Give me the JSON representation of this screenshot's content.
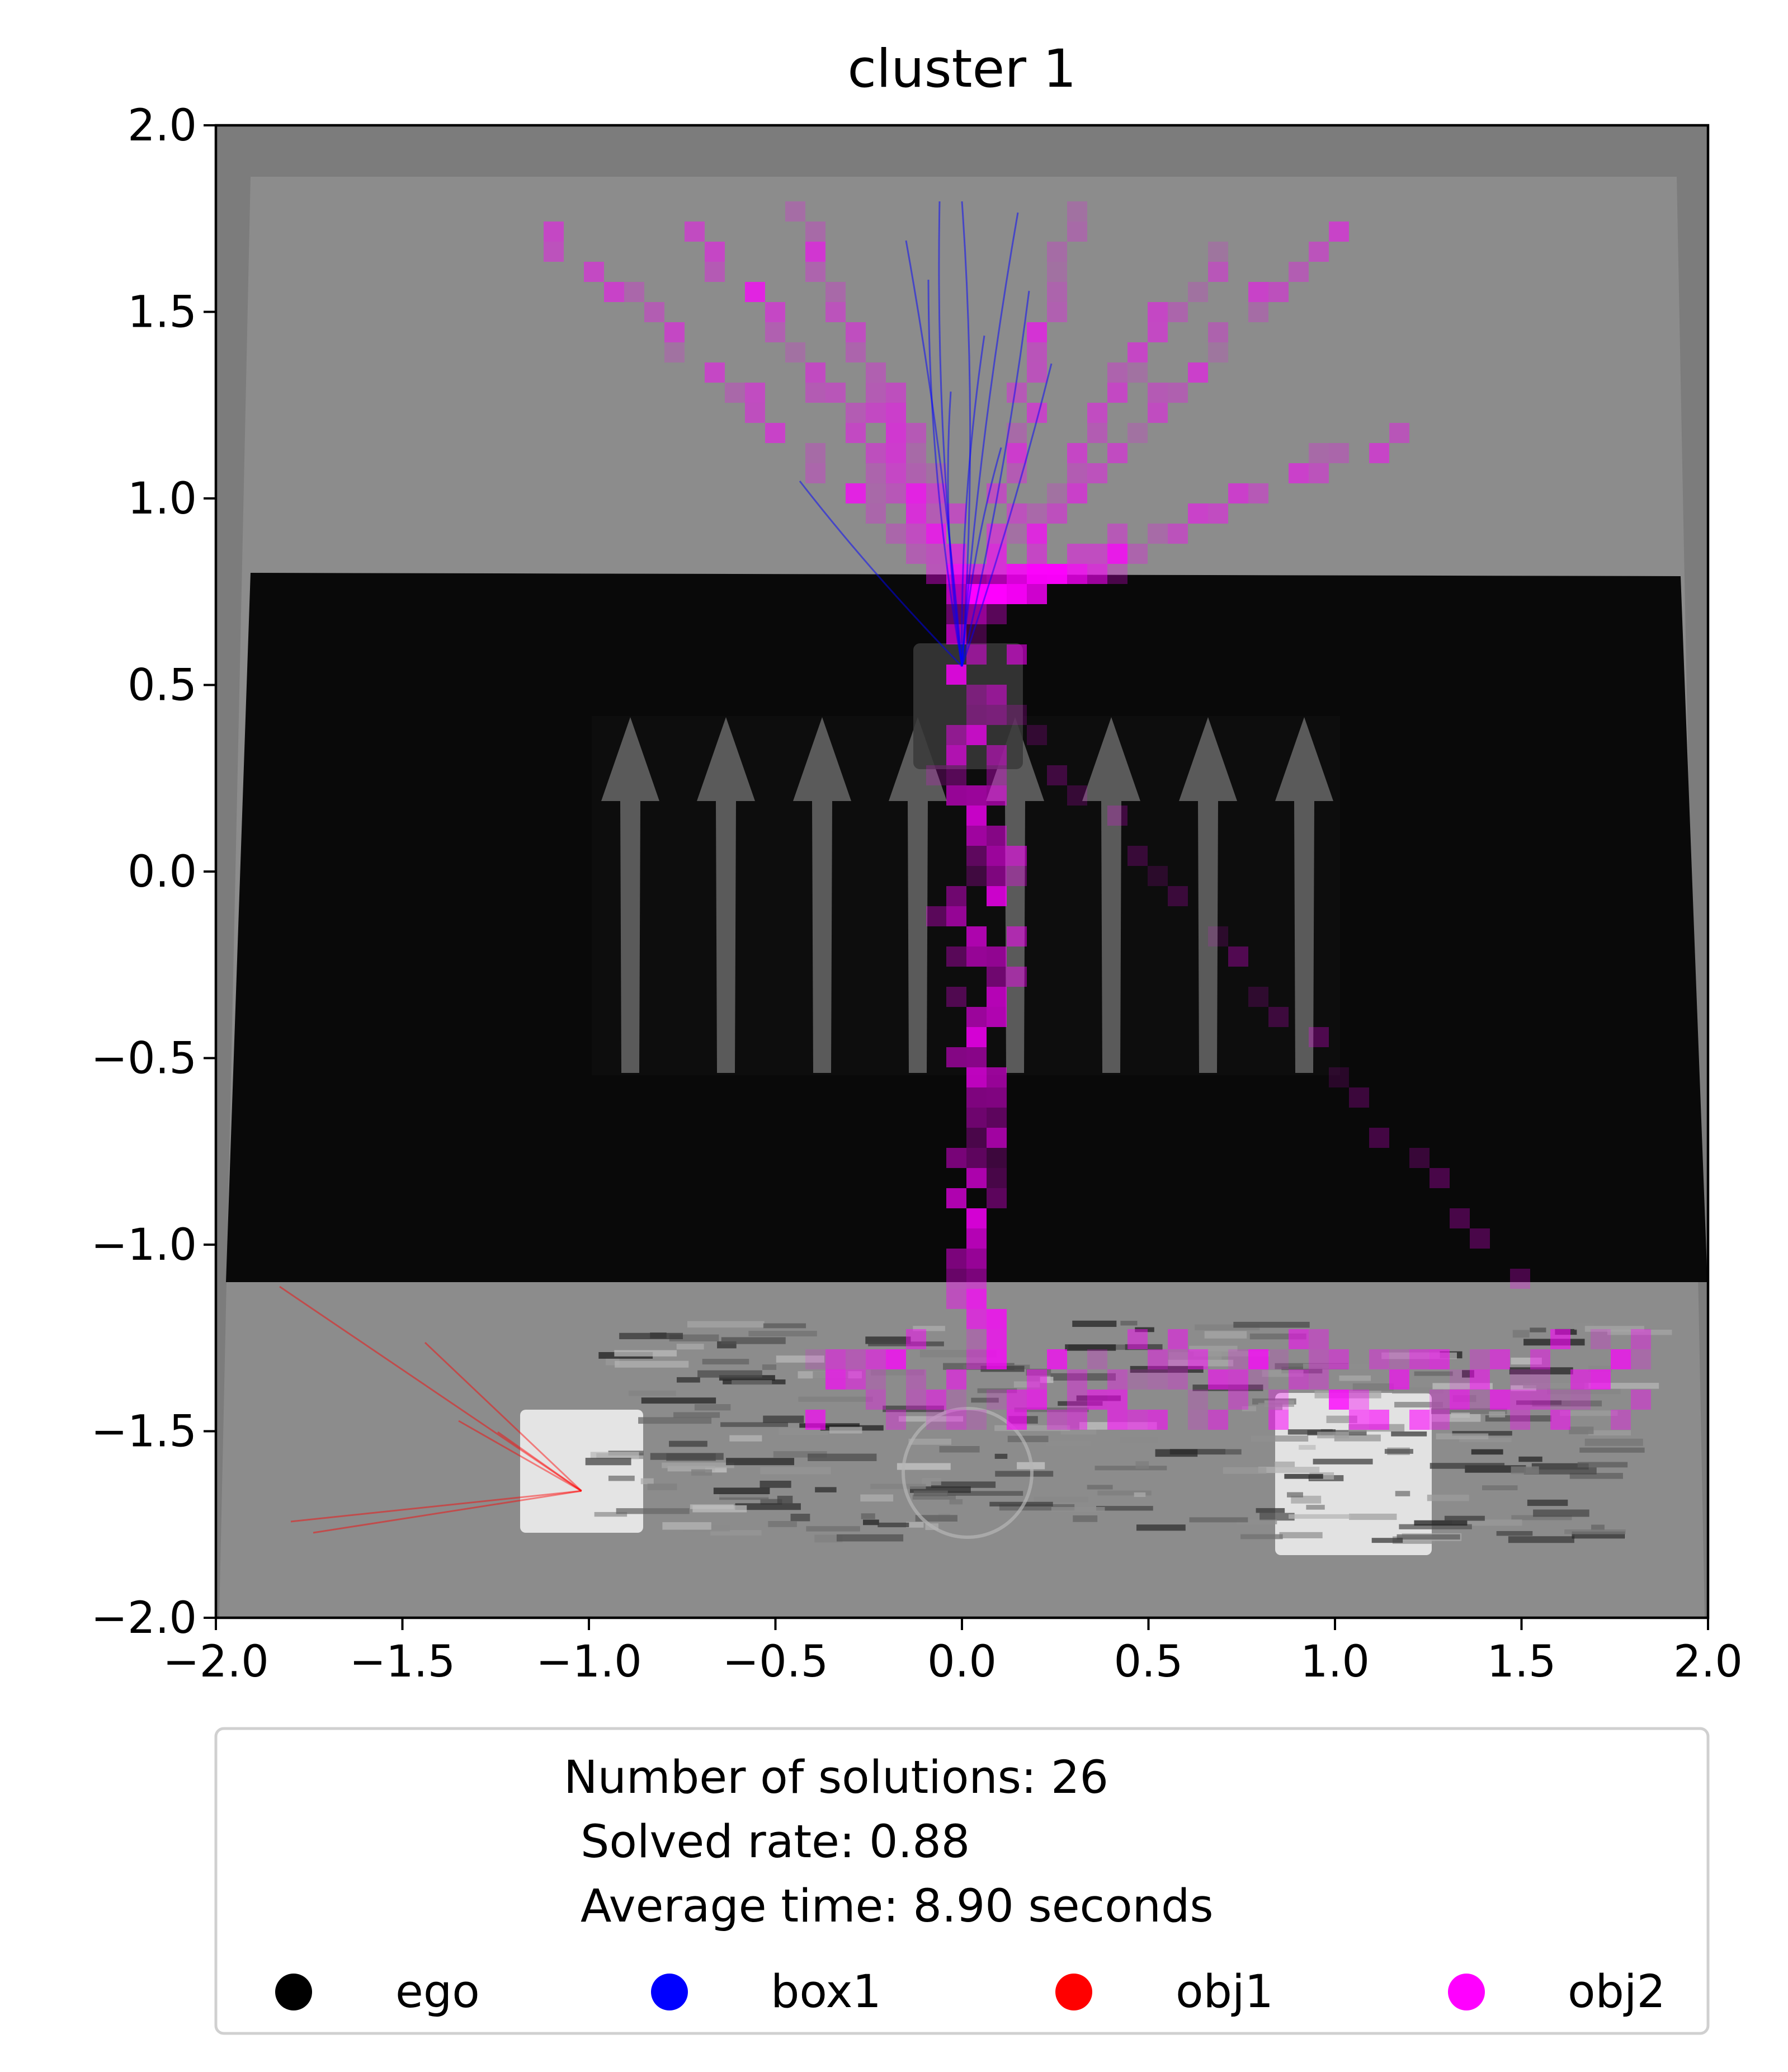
{
  "chart_data": {
    "type": "scatter",
    "title": "cluster 1",
    "xlabel": "",
    "ylabel": "",
    "xlim": [
      -2.0,
      2.0
    ],
    "ylim": [
      -2.0,
      2.0
    ],
    "x_ticks": [
      "−2.0",
      "−1.5",
      "−1.0",
      "−0.5",
      "0.0",
      "0.5",
      "1.0",
      "1.5",
      "2.0"
    ],
    "y_ticks": [
      "−2.0",
      "−1.5",
      "−1.0",
      "−0.5",
      "0.0",
      "0.5",
      "1.0",
      "1.5",
      "2.0"
    ],
    "grid": false,
    "legend_position": "below",
    "legend_summary": [
      "Number of solutions: 26",
      "Solved rate: 0.88",
      "Average time: 8.90 seconds"
    ],
    "series": [
      {
        "name": "ego",
        "color": "#000000"
      },
      {
        "name": "box1",
        "color": "#0000ff"
      },
      {
        "name": "obj1",
        "color": "#ff0000"
      },
      {
        "name": "obj2",
        "color": "#ff00ff"
      }
    ],
    "background_image": "top-down simulated scene: gray floor, black conveyor belt with upward arrows, two white cubes, dark box near center",
    "box1_end": [
      0.0,
      0.55
    ],
    "ego_start": [
      0.0,
      -1.6
    ],
    "obj1_start": [
      -1.02,
      -1.6
    ],
    "obj2_start": [
      1.0,
      -1.62
    ]
  }
}
